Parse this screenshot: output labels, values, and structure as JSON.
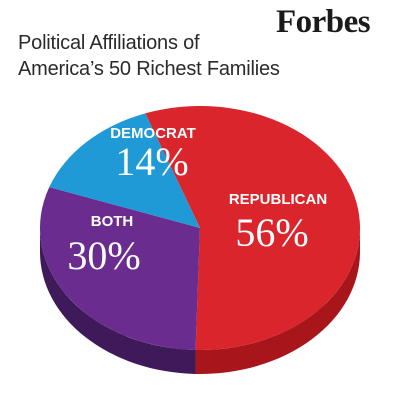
{
  "brand": "Forbes",
  "chart_data": {
    "type": "pie",
    "title_lines": [
      "Political Affiliations of",
      "America’s 50 Richest Families"
    ],
    "categories": [
      "REPUBLICAN",
      "BOTH",
      "DEMOCRAT"
    ],
    "values": [
      56,
      30,
      14
    ],
    "labels": [
      "56%",
      "30%",
      "14%"
    ],
    "colors": [
      "#d9252b",
      "#6a2c8e",
      "#1f9ad6"
    ],
    "side_colors": [
      "#a8161b",
      "#3f1a5a",
      "#136a96"
    ],
    "style": "3d"
  }
}
